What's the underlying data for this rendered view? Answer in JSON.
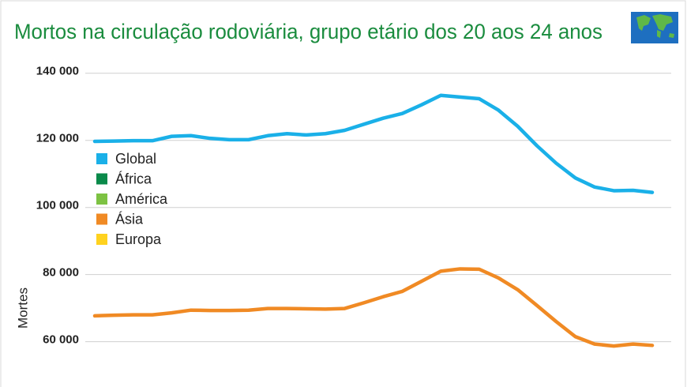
{
  "chart_data": {
    "type": "line",
    "title": "Mortos na circulação rodoviária, grupo etário dos 20 aos 24 anos",
    "y_label": "Mortes",
    "categories": [
      null,
      null,
      null,
      null,
      null,
      null,
      null,
      null,
      null,
      null,
      null,
      null,
      null,
      null,
      null,
      null,
      null,
      null,
      null,
      null,
      null,
      null,
      null,
      null,
      null,
      null,
      null,
      null,
      null,
      null
    ],
    "series": [
      {
        "name": "Global",
        "color": "#1ab0e8",
        "values": [
          119700,
          119800,
          119900,
          119900,
          121200,
          121400,
          120600,
          120200,
          120200,
          121400,
          122000,
          121600,
          122000,
          123000,
          124800,
          126600,
          128000,
          130600,
          133400,
          132900,
          132400,
          129000,
          124200,
          118400,
          113200,
          108800,
          106100,
          105000,
          105100,
          104500
        ]
      },
      {
        "name": "África",
        "color": "#0a8a4a",
        "values": [
          null,
          null,
          null,
          null,
          null,
          null,
          null,
          null,
          null,
          null,
          null,
          null,
          null,
          null,
          null,
          null,
          null,
          null,
          null,
          null,
          null,
          null,
          null,
          null,
          null,
          null,
          null,
          null,
          null,
          null
        ]
      },
      {
        "name": "América",
        "color": "#7dc243",
        "values": [
          null,
          null,
          null,
          null,
          null,
          null,
          null,
          null,
          null,
          null,
          null,
          null,
          null,
          null,
          null,
          null,
          null,
          null,
          null,
          null,
          null,
          null,
          null,
          null,
          null,
          null,
          null,
          null,
          null,
          null
        ]
      },
      {
        "name": "Ásia",
        "color": "#f08a24",
        "values": [
          67700,
          67900,
          68000,
          68000,
          68600,
          69400,
          69300,
          69300,
          69400,
          69900,
          69900,
          69800,
          69700,
          69900,
          71600,
          73400,
          75000,
          78000,
          81000,
          81700,
          81600,
          79000,
          75500,
          70800,
          66000,
          61500,
          59300,
          58700,
          59300,
          58900
        ]
      },
      {
        "name": "Europa",
        "color": "#ffd21f",
        "values": [
          null,
          null,
          null,
          null,
          null,
          null,
          null,
          null,
          null,
          null,
          null,
          null,
          null,
          null,
          null,
          null,
          null,
          null,
          null,
          null,
          null,
          null,
          null,
          null,
          null,
          null,
          null,
          null,
          null,
          null
        ]
      }
    ],
    "ylim": [
      46500,
      143000
    ],
    "yticks": [
      {
        "value": 60000,
        "label": "60 000"
      },
      {
        "value": 80000,
        "label": "80 000"
      },
      {
        "value": 100000,
        "label": "100 000"
      },
      {
        "value": 120000,
        "label": "120 000"
      },
      {
        "value": 140000,
        "label": "140 000"
      }
    ],
    "grid": true,
    "legend": "left"
  }
}
